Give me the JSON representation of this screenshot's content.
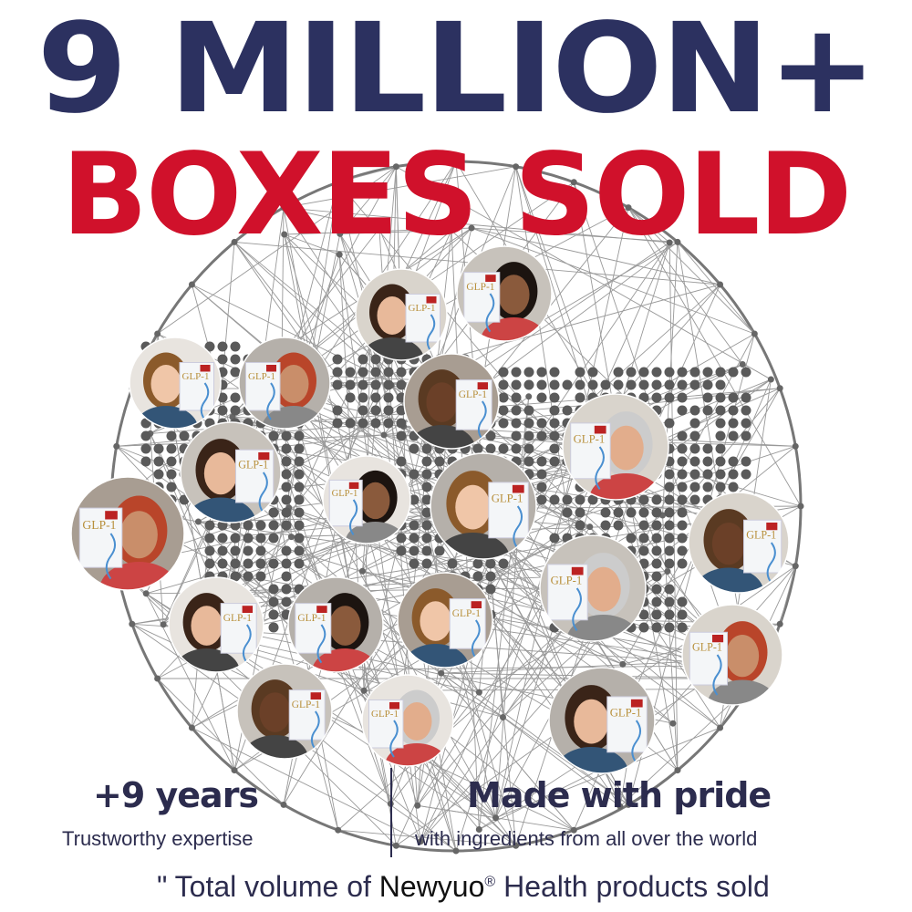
{
  "headline": {
    "line1": "9 MILLION+",
    "line2": "BOXES SOLD"
  },
  "colors": {
    "navy": "#2c3160",
    "red": "#d0112b",
    "text": "#2c2c4e",
    "dots": "#5a5a5a"
  },
  "product_label": "GLP-1",
  "stats": [
    {
      "title": "+9 years",
      "subtitle": "Trustworthy expertise"
    },
    {
      "title": "Made with pride",
      "subtitle": "with ingredients from all over the world"
    }
  ],
  "footnote": {
    "prefix": "\" Total volume of ",
    "brand": "Newyuo",
    "mark": "®",
    "suffix": " Health products sold"
  },
  "testimonial_count": 19
}
